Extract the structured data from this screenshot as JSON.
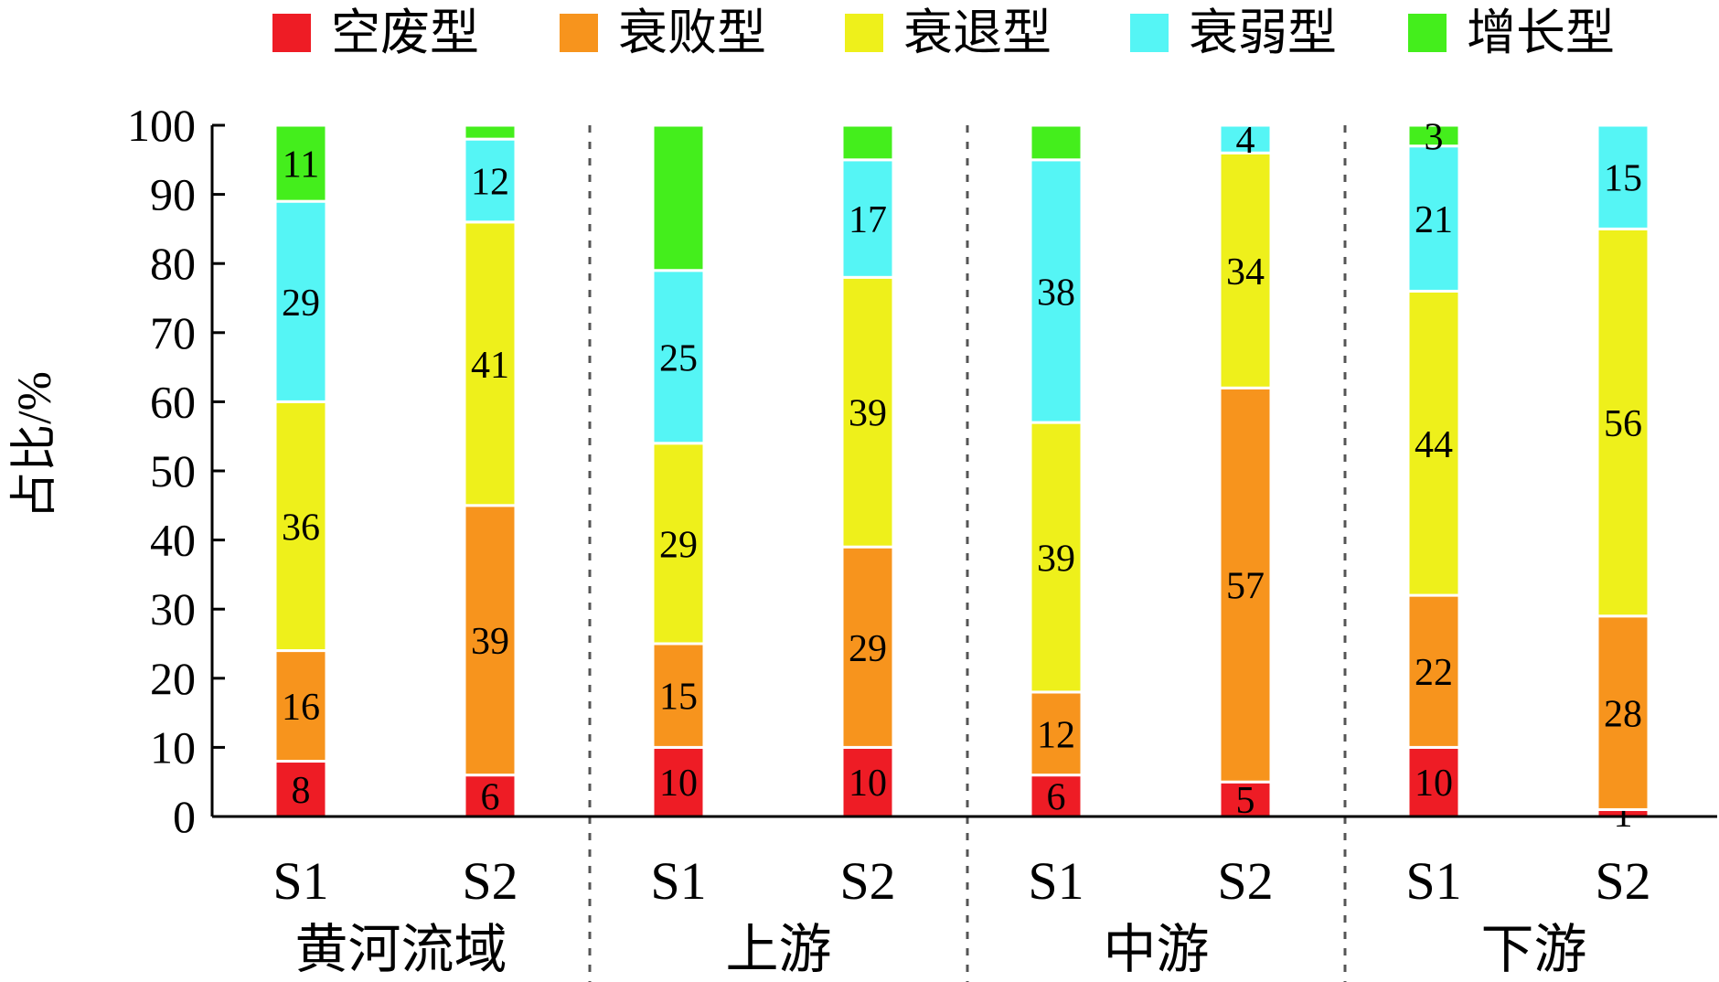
{
  "chart_data": {
    "type": "bar",
    "stacked": true,
    "ylabel": "占比/%",
    "ylim": [
      0,
      100
    ],
    "yticks": [
      0,
      10,
      20,
      30,
      40,
      50,
      60,
      70,
      80,
      90,
      100
    ],
    "grid": false,
    "legend_position": "top",
    "groups": [
      "黄河流域",
      "上游",
      "中游",
      "下游"
    ],
    "scenarios": [
      "S1",
      "S2"
    ],
    "categories": [
      "S1",
      "S2",
      "S1",
      "S2",
      "S1",
      "S2",
      "S1",
      "S2"
    ],
    "series": [
      {
        "name": "空废型",
        "color": "#ee1c25",
        "values": [
          8,
          6,
          10,
          10,
          6,
          5,
          10,
          1
        ]
      },
      {
        "name": "衰败型",
        "color": "#f7941d",
        "values": [
          16,
          39,
          15,
          29,
          12,
          57,
          22,
          28
        ]
      },
      {
        "name": "衰退型",
        "color": "#eef01b",
        "values": [
          36,
          41,
          29,
          39,
          39,
          34,
          44,
          56
        ]
      },
      {
        "name": "衰弱型",
        "color": "#55f5f5",
        "values": [
          29,
          12,
          25,
          17,
          38,
          4,
          21,
          15
        ]
      },
      {
        "name": "增长型",
        "color": "#44ee1c",
        "values": [
          11,
          2,
          21,
          5,
          5,
          0,
          3,
          0
        ]
      }
    ],
    "hidden_segment_labels": [
      [
        1,
        4
      ],
      [
        2,
        4
      ],
      [
        3,
        4
      ],
      [
        4,
        4
      ],
      [
        5,
        4
      ],
      [
        7,
        4
      ]
    ]
  }
}
